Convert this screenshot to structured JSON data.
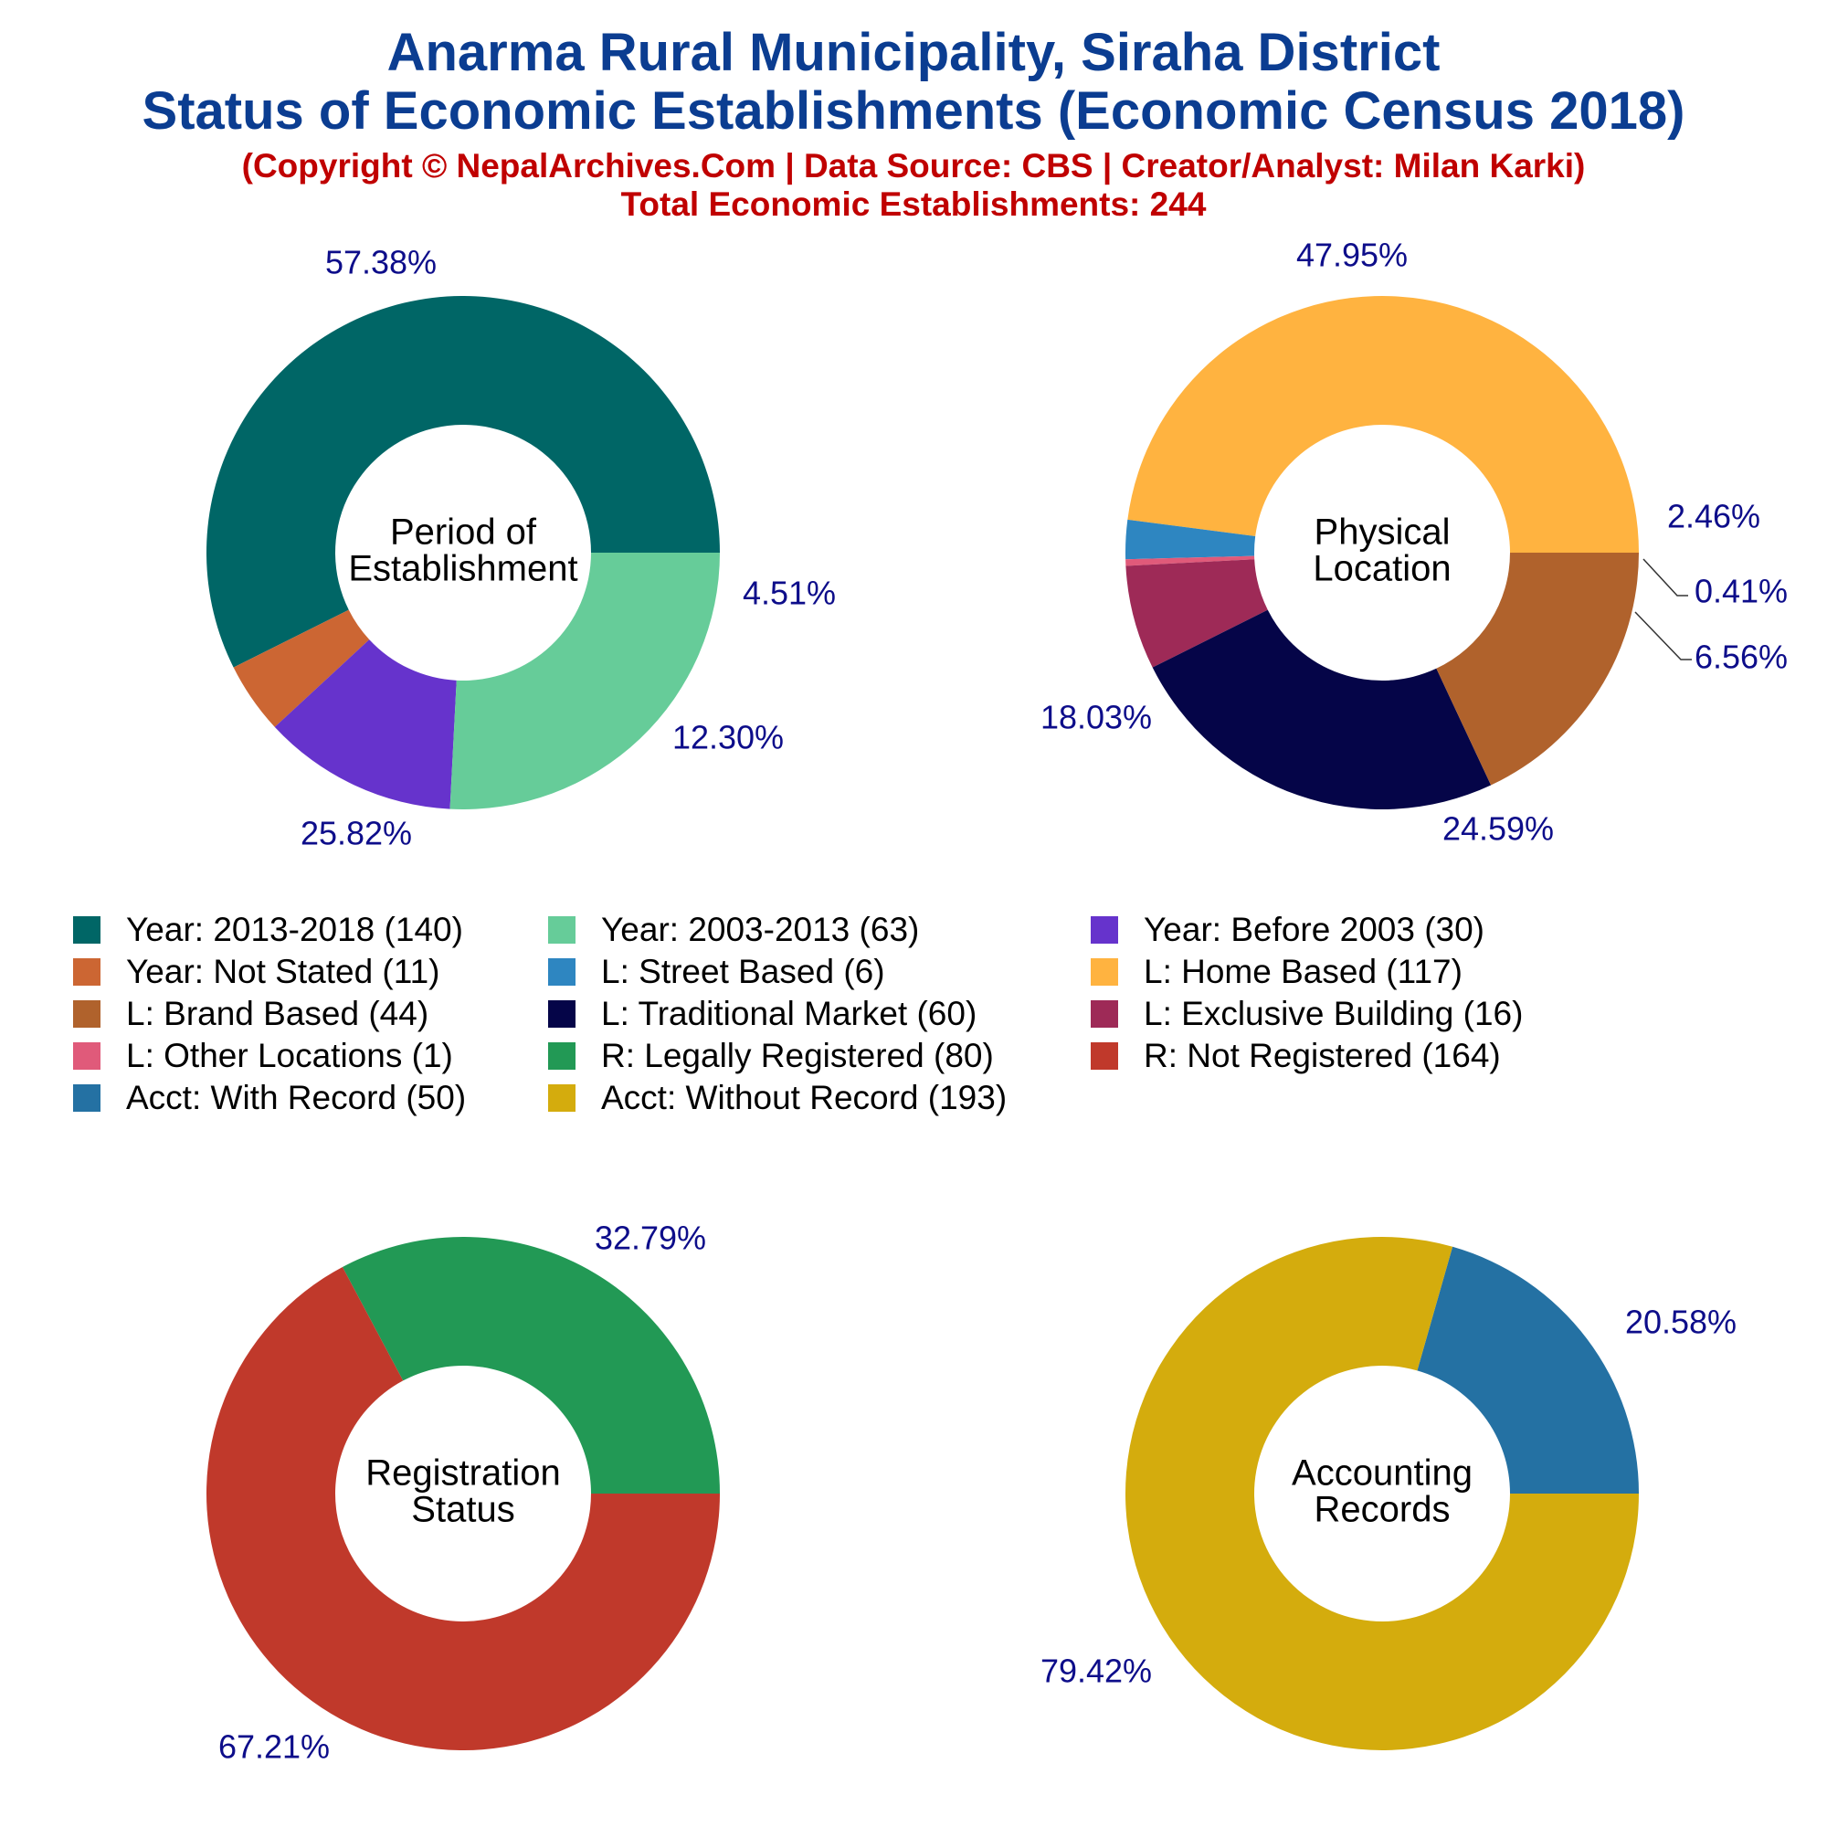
{
  "title_line1": "Anarma Rural Municipality, Siraha District",
  "title_line2": "Status of Economic Establishments (Economic Census 2018)",
  "subtitle_line1": "(Copyright © NepalArchives.Com | Data Source: CBS | Creator/Analyst: Milan Karki)",
  "subtitle_line2": "Total Economic Establishments: 244",
  "chart_data": [
    {
      "type": "pie",
      "donut": true,
      "center_label": [
        "Period of",
        "Establishment"
      ],
      "slices": [
        {
          "label": "Year: 2013-2018",
          "value": 140,
          "percent_label": "57.38%",
          "color": "#006666"
        },
        {
          "label": "Year: Not Stated",
          "value": 11,
          "percent_label": "4.51%",
          "color": "#cc6633"
        },
        {
          "label": "Year: Before 2003",
          "value": 30,
          "percent_label": "12.30%",
          "color": "#6633cc"
        },
        {
          "label": "Year: 2003-2013",
          "value": 63,
          "percent_label": "25.82%",
          "color": "#66cc99"
        }
      ]
    },
    {
      "type": "pie",
      "donut": true,
      "center_label": [
        "Physical",
        "Location"
      ],
      "slices": [
        {
          "label": "L: Home Based",
          "value": 117,
          "percent_label": "47.95%",
          "color": "#ffb340"
        },
        {
          "label": "L: Street Based",
          "value": 6,
          "percent_label": "2.46%",
          "color": "#2e86c1"
        },
        {
          "label": "L: Other Locations",
          "value": 1,
          "percent_label": "0.41%",
          "color": "#e05a7a"
        },
        {
          "label": "L: Exclusive Building",
          "value": 16,
          "percent_label": "6.56%",
          "color": "#9e2a57"
        },
        {
          "label": "L: Traditional Market",
          "value": 60,
          "percent_label": "24.59%",
          "color": "#050548"
        },
        {
          "label": "L: Brand Based",
          "value": 44,
          "percent_label": "18.03%",
          "color": "#b0622c"
        }
      ]
    },
    {
      "type": "pie",
      "donut": true,
      "center_label": [
        "Registration",
        "Status"
      ],
      "slices": [
        {
          "label": "R: Legally Registered",
          "value": 80,
          "percent_label": "32.79%",
          "color": "#229955"
        },
        {
          "label": "R: Not Registered",
          "value": 164,
          "percent_label": "67.21%",
          "color": "#c0392b"
        }
      ]
    },
    {
      "type": "pie",
      "donut": true,
      "center_label": [
        "Accounting",
        "Records"
      ],
      "slices": [
        {
          "label": "Acct: With Record",
          "value": 50,
          "percent_label": "20.58%",
          "color": "#2471a3"
        },
        {
          "label": "Acct: Without Record",
          "value": 193,
          "percent_label": "79.42%",
          "color": "#d4ac0d"
        }
      ]
    }
  ],
  "legend": [
    {
      "text": "Year: 2013-2018 (140)",
      "color": "#006666"
    },
    {
      "text": "Year: 2003-2013 (63)",
      "color": "#66cc99"
    },
    {
      "text": "Year: Before 2003 (30)",
      "color": "#6633cc"
    },
    {
      "text": "Year: Not Stated (11)",
      "color": "#cc6633"
    },
    {
      "text": "L: Street Based (6)",
      "color": "#2e86c1"
    },
    {
      "text": "L: Home Based (117)",
      "color": "#ffb340"
    },
    {
      "text": "L: Brand Based (44)",
      "color": "#b0622c"
    },
    {
      "text": "L: Traditional Market (60)",
      "color": "#050548"
    },
    {
      "text": "L: Exclusive Building (16)",
      "color": "#9e2a57"
    },
    {
      "text": "L: Other Locations (1)",
      "color": "#e05a7a"
    },
    {
      "text": "R: Legally Registered (80)",
      "color": "#229955"
    },
    {
      "text": "R: Not Registered (164)",
      "color": "#c0392b"
    },
    {
      "text": "Acct: With Record (50)",
      "color": "#2471a3"
    },
    {
      "text": "Acct: Without Record (193)",
      "color": "#d4ac0d"
    }
  ]
}
